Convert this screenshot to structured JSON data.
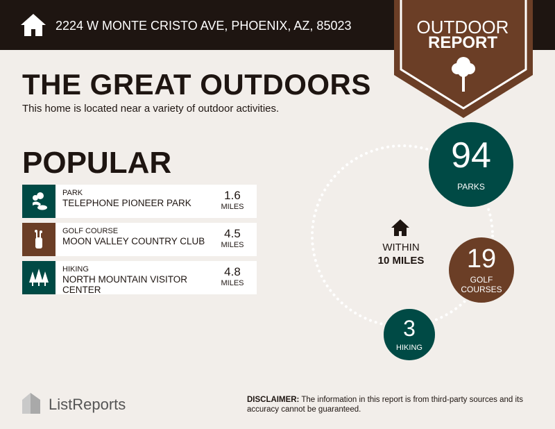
{
  "header": {
    "address": "2224 W MONTE CRISTO AVE, PHOENIX, AZ, 85023",
    "icon": "home-icon"
  },
  "banner": {
    "line1": "OUTDOOR",
    "line2": "REPORT",
    "icon": "tree-icon"
  },
  "title": "THE GREAT OUTDOORS",
  "subtitle": "This home is located near a variety of outdoor activities.",
  "popular": {
    "heading": "POPULAR",
    "items": [
      {
        "category": "PARK",
        "name": "TELEPHONE PIONEER PARK",
        "distance": "1.6",
        "unit": "MILES",
        "icon": "park-icon",
        "color": "#004a45"
      },
      {
        "category": "GOLF COURSE",
        "name": "MOON VALLEY COUNTRY CLUB",
        "distance": "4.5",
        "unit": "MILES",
        "icon": "golf-bag-icon",
        "color": "#6b3e26"
      },
      {
        "category": "HIKING",
        "name": "NORTH MOUNTAIN VISITOR CENTER",
        "distance": "4.8",
        "unit": "MILES",
        "icon": "pine-trees-icon",
        "color": "#004a45"
      }
    ]
  },
  "summary": {
    "within": "WITHIN",
    "radius": "10 MILES",
    "parks": {
      "count": "94",
      "label": "PARKS"
    },
    "golf": {
      "count": "19",
      "label1": "GOLF",
      "label2": "COURSES"
    },
    "hiking": {
      "count": "3",
      "label": "HIKING"
    }
  },
  "footer": {
    "brand": "ListReports",
    "disclaimer_label": "DISCLAIMER:",
    "disclaimer": " The information in this report is from third-party sources and its accuracy cannot be guaranteed."
  },
  "colors": {
    "teal": "#004a45",
    "brown": "#6b3e26",
    "dark": "#1e1511",
    "background": "#f2eeea"
  }
}
